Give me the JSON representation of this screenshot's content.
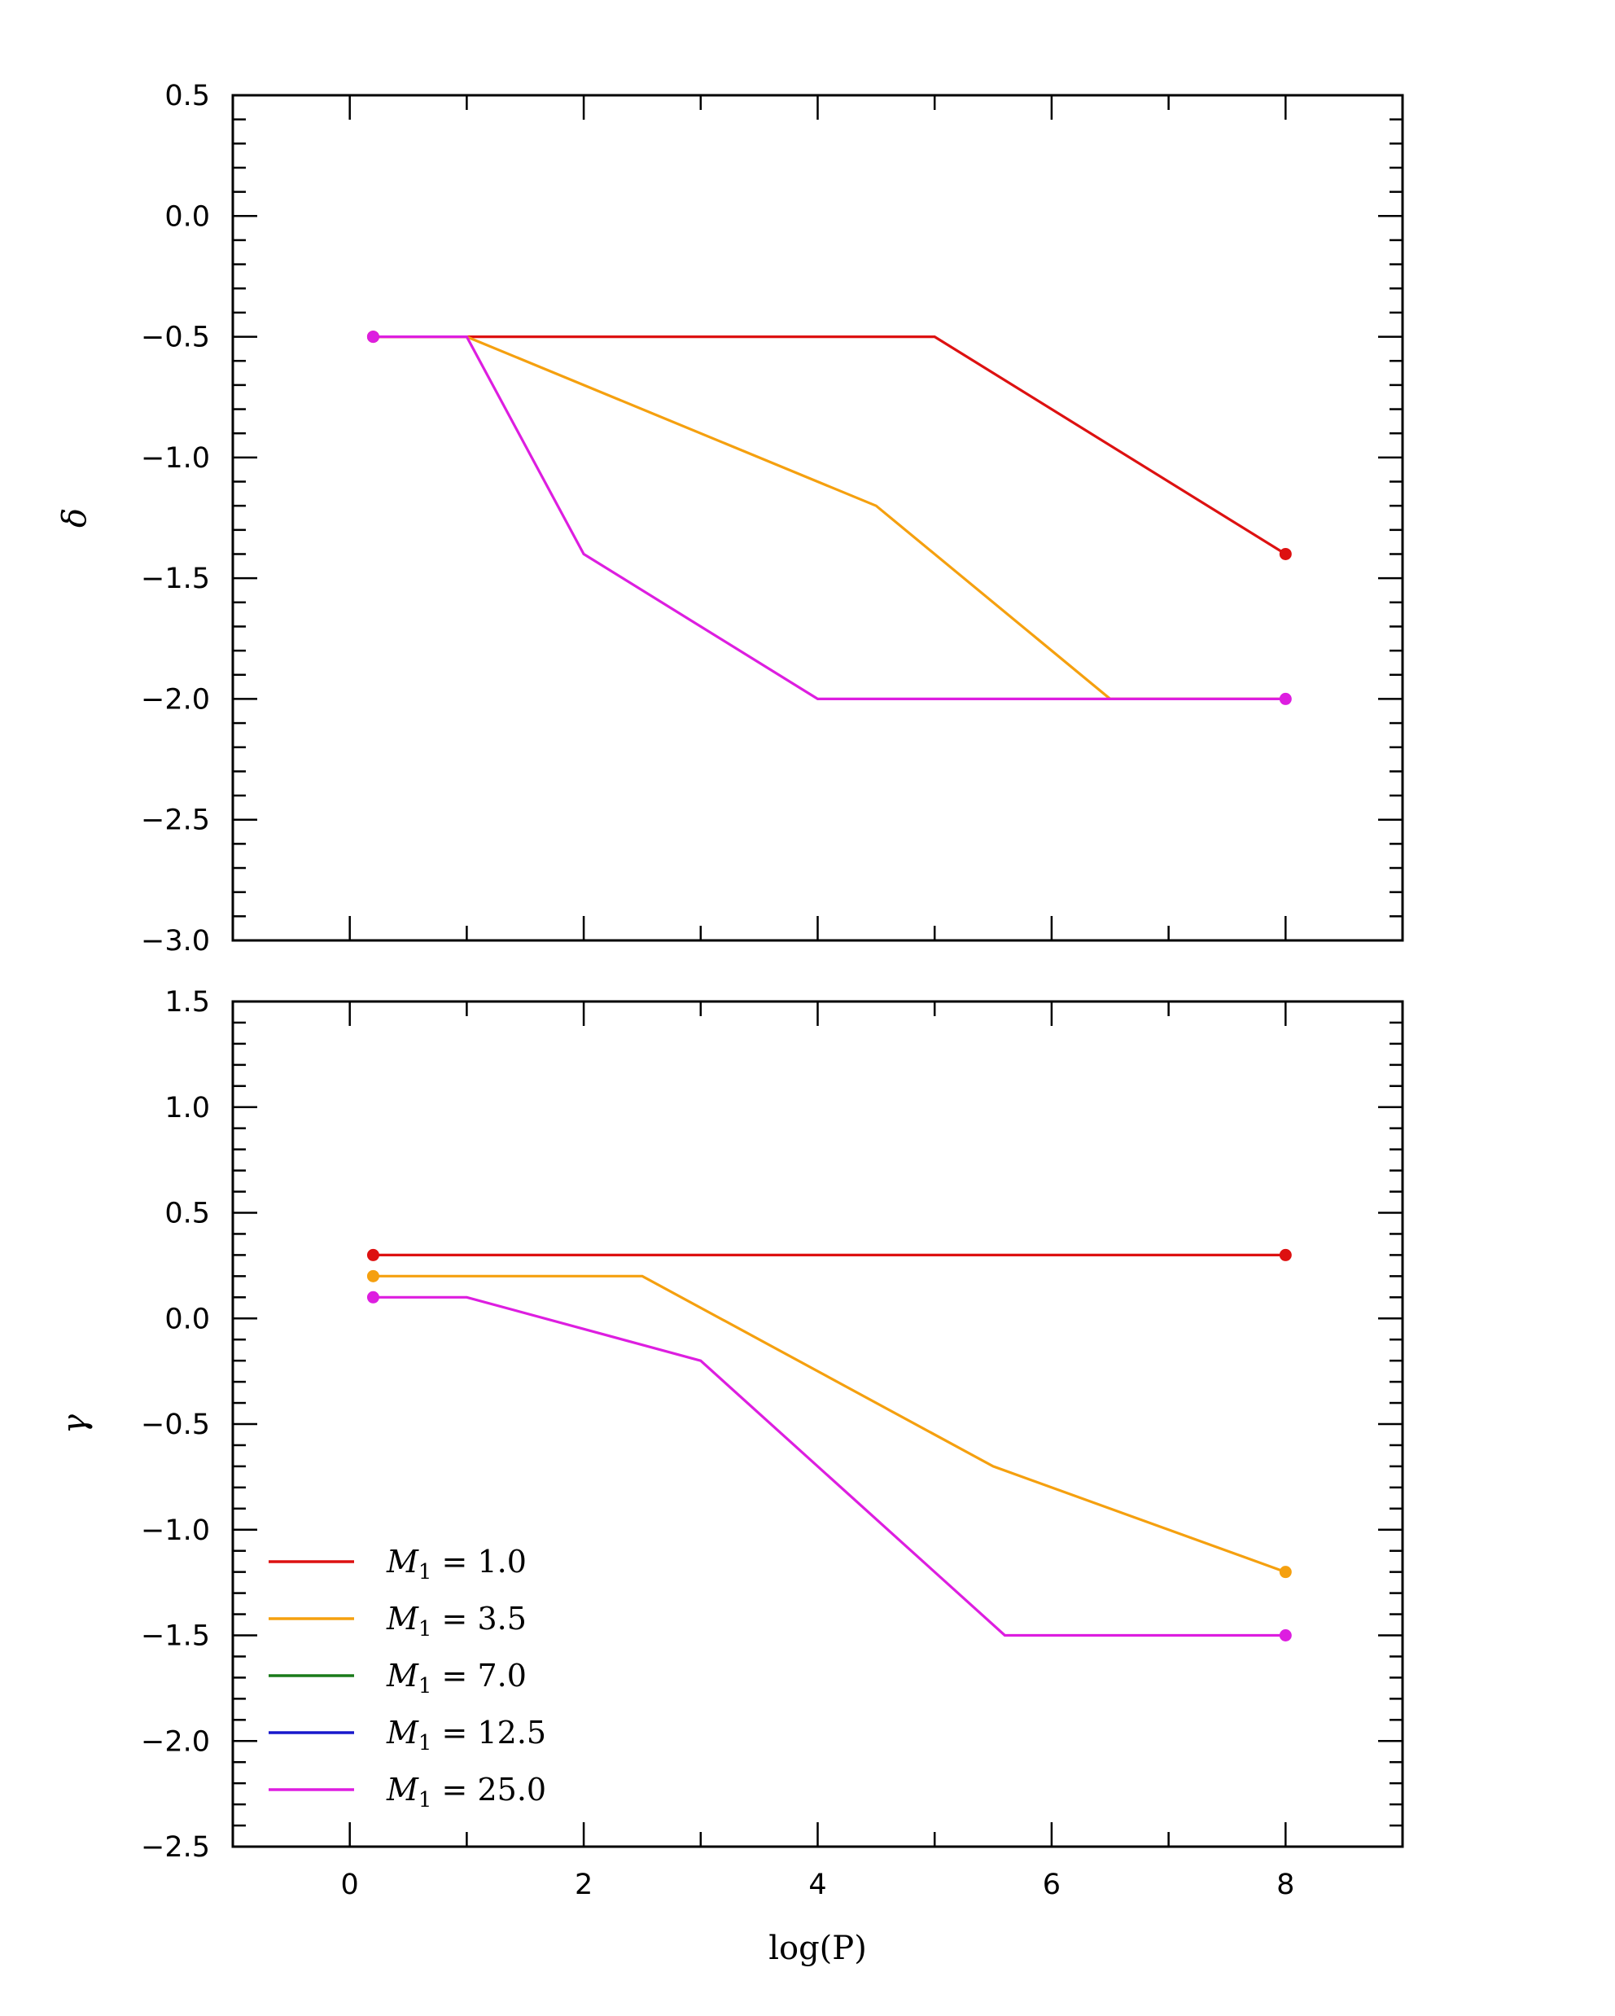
{
  "chart_data": [
    {
      "type": "line",
      "xlabel": "",
      "ylabel": "δ",
      "xlim": [
        -1,
        9
      ],
      "ylim": [
        -3.0,
        0.5
      ],
      "x_ticks": [
        0,
        2,
        4,
        6,
        8
      ],
      "x_tick_labels_shown": false,
      "y_ticks": [
        0.5,
        0.0,
        -0.5,
        -1.0,
        -1.5,
        -2.0,
        -2.5,
        -3.0
      ],
      "y_tick_labels": [
        "0.5",
        "0.0",
        "−0.5",
        "−1.0",
        "−1.5",
        "−2.0",
        "−2.5",
        "−3.0"
      ],
      "grid": false,
      "series": [
        {
          "name": "M1 = 1.0",
          "color": "#dd1111",
          "x": [
            0.2,
            1.0,
            5.0,
            8.0
          ],
          "y": [
            -0.5,
            -0.5,
            -0.5,
            -1.4
          ],
          "endpoints": true
        },
        {
          "name": "M1 = 3.5",
          "color": "#f5a00f",
          "x": [
            0.2,
            1.0,
            4.5,
            6.5,
            8.0
          ],
          "y": [
            -0.5,
            -0.5,
            -1.2,
            -2.0,
            -2.0
          ],
          "endpoints": false
        },
        {
          "name": "M1 = 25.0",
          "color": "#dd1ee0",
          "x": [
            0.2,
            1.0,
            2.0,
            4.0,
            8.0
          ],
          "y": [
            -0.5,
            -0.5,
            -1.4,
            -2.0,
            -2.0
          ],
          "endpoints": true
        }
      ]
    },
    {
      "type": "line",
      "xlabel": "log(P)",
      "ylabel": "γ",
      "xlim": [
        -1,
        9
      ],
      "ylim": [
        -2.5,
        1.5
      ],
      "x_ticks": [
        0,
        2,
        4,
        6,
        8
      ],
      "x_tick_labels": [
        "0",
        "2",
        "4",
        "6",
        "8"
      ],
      "y_ticks": [
        1.5,
        1.0,
        0.5,
        0.0,
        -0.5,
        -1.0,
        -1.5,
        -2.0,
        -2.5
      ],
      "y_tick_labels": [
        "1.5",
        "1.0",
        "0.5",
        "0.0",
        "−0.5",
        "−1.0",
        "−1.5",
        "−2.0",
        "−2.5"
      ],
      "grid": false,
      "legend_position": "bottom-left",
      "legend": [
        {
          "label": "M1 = 1.0",
          "color": "#dd1111"
        },
        {
          "label": "M1 = 3.5",
          "color": "#f5a00f"
        },
        {
          "label": "M1 = 7.0",
          "color": "#1a7a1a"
        },
        {
          "label": "M1 = 12.5",
          "color": "#1818cc"
        },
        {
          "label": "M1 = 25.0",
          "color": "#dd1ee0"
        }
      ],
      "series": [
        {
          "name": "M1 = 1.0",
          "color": "#dd1111",
          "x": [
            0.2,
            8.0
          ],
          "y": [
            0.3,
            0.3
          ],
          "endpoints": true
        },
        {
          "name": "M1 = 3.5",
          "color": "#f5a00f",
          "x": [
            0.2,
            2.5,
            5.5,
            8.0
          ],
          "y": [
            0.2,
            0.2,
            -0.7,
            -1.2
          ],
          "endpoints": true
        },
        {
          "name": "M1 = 25.0",
          "color": "#dd1ee0",
          "x": [
            0.2,
            1.0,
            3.0,
            5.6,
            8.0
          ],
          "y": [
            0.1,
            0.1,
            -0.2,
            -1.5,
            -1.5
          ],
          "endpoints": true
        }
      ]
    }
  ]
}
